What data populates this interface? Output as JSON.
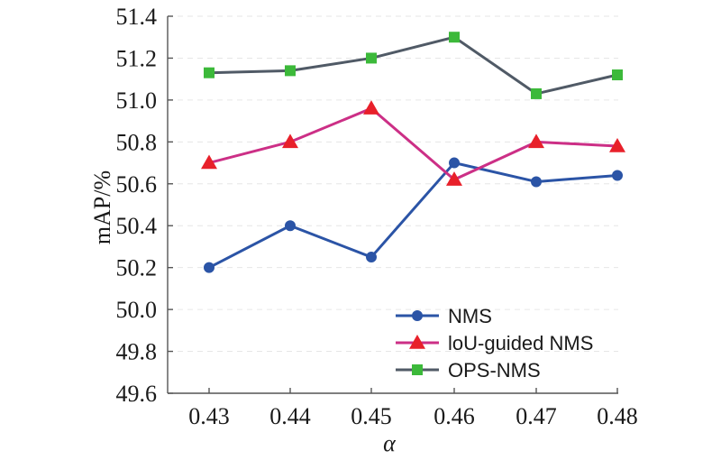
{
  "chart_data": {
    "type": "line",
    "xlabel": "α",
    "ylabel": "mAP/%",
    "x": [
      0.43,
      0.44,
      0.45,
      0.46,
      0.47,
      0.48
    ],
    "x_tick_labels": [
      "0.43",
      "0.44",
      "0.45",
      "0.46",
      "0.47",
      "0.48"
    ],
    "ylim": [
      49.6,
      51.4
    ],
    "y_ticks": [
      49.6,
      49.8,
      50.0,
      50.2,
      50.4,
      50.6,
      50.8,
      51.0,
      51.2,
      51.4
    ],
    "y_tick_labels": [
      "49.6",
      "49.8",
      "50.0",
      "50.2",
      "50.4",
      "50.6",
      "50.8",
      "51.0",
      "51.2",
      "51.4"
    ],
    "grid": "horizontal dashed",
    "legend_position": "bottom-right",
    "series": [
      {
        "name": "NMS",
        "values": [
          50.2,
          50.4,
          50.25,
          50.7,
          50.61,
          50.64
        ],
        "color": "#2b54a6",
        "marker": "circle"
      },
      {
        "name": "loU-guided NMS",
        "values": [
          50.7,
          50.8,
          50.96,
          50.62,
          50.8,
          50.78
        ],
        "color": "#cc2f86",
        "marker_color": "#e8202a",
        "marker": "triangle"
      },
      {
        "name": "OPS-NMS",
        "values": [
          51.13,
          51.14,
          51.2,
          51.3,
          51.03,
          51.12
        ],
        "color": "#505a66",
        "marker_color": "#3cb93a",
        "marker": "square"
      }
    ]
  }
}
